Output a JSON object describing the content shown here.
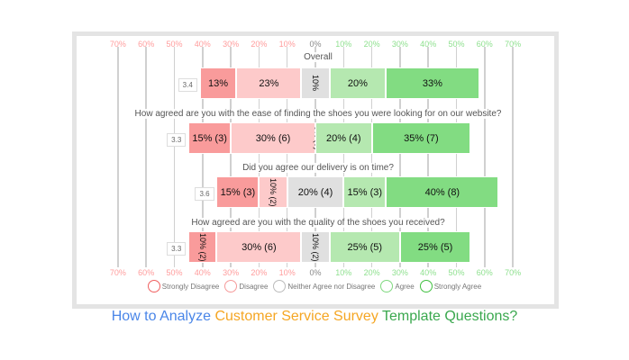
{
  "chart_data": {
    "type": "bar",
    "subtype": "diverging-stacked-likert",
    "categories": [
      "Strongly Disagree",
      "Disagree",
      "Neither Agree nor Disagree",
      "Agree",
      "Strongly Agree"
    ],
    "colors": [
      "#f99b9b",
      "#fdcaca",
      "#e0e0e0",
      "#b5e8b0",
      "#82dc82"
    ],
    "face_colors": [
      "#f06060",
      "#f59a9a",
      "#bbbbbb",
      "#7fd87f",
      "#40c040"
    ],
    "x_ticks": [
      "70%",
      "60%",
      "50%",
      "40%",
      "30%",
      "20%",
      "10%",
      "0%",
      "10%",
      "20%",
      "30%",
      "40%",
      "50%",
      "60%",
      "70%"
    ],
    "xlim": [
      -70,
      70
    ],
    "rows": [
      {
        "label": "Overall",
        "score": "3.4",
        "values": [
          13,
          23,
          10,
          20,
          33
        ],
        "texts": [
          "13%",
          "23%",
          "10%",
          "20%",
          "33%"
        ]
      },
      {
        "label": "How agreed are you with the ease of finding the shoes you were looking for on our website?",
        "score": "3.3",
        "values": [
          15,
          30,
          0,
          20,
          35
        ],
        "texts": [
          "15% (3)",
          "30% (6)",
          "0% (0)",
          "20% (4)",
          "35% (7)"
        ]
      },
      {
        "label": "Did you agree our delivery is on time?",
        "score": "3.6",
        "values": [
          15,
          10,
          20,
          15,
          40
        ],
        "texts": [
          "15% (3)",
          "10% (2)",
          "20% (4)",
          "15% (3)",
          "40% (8)"
        ]
      },
      {
        "label": "How agreed are you with the quality of the shoes you received?",
        "score": "3.3",
        "values": [
          10,
          30,
          10,
          25,
          25
        ],
        "texts": [
          "10% (2)",
          "30% (6)",
          "10% (2)",
          "25% (5)",
          "25% (5)"
        ]
      }
    ]
  },
  "title": {
    "part1": "How to Analyze",
    "part2": "Customer Service Survey",
    "part3": "Template Questions?",
    "colors": [
      "#4a86e8",
      "#f5a623",
      "#3aa84e"
    ]
  }
}
